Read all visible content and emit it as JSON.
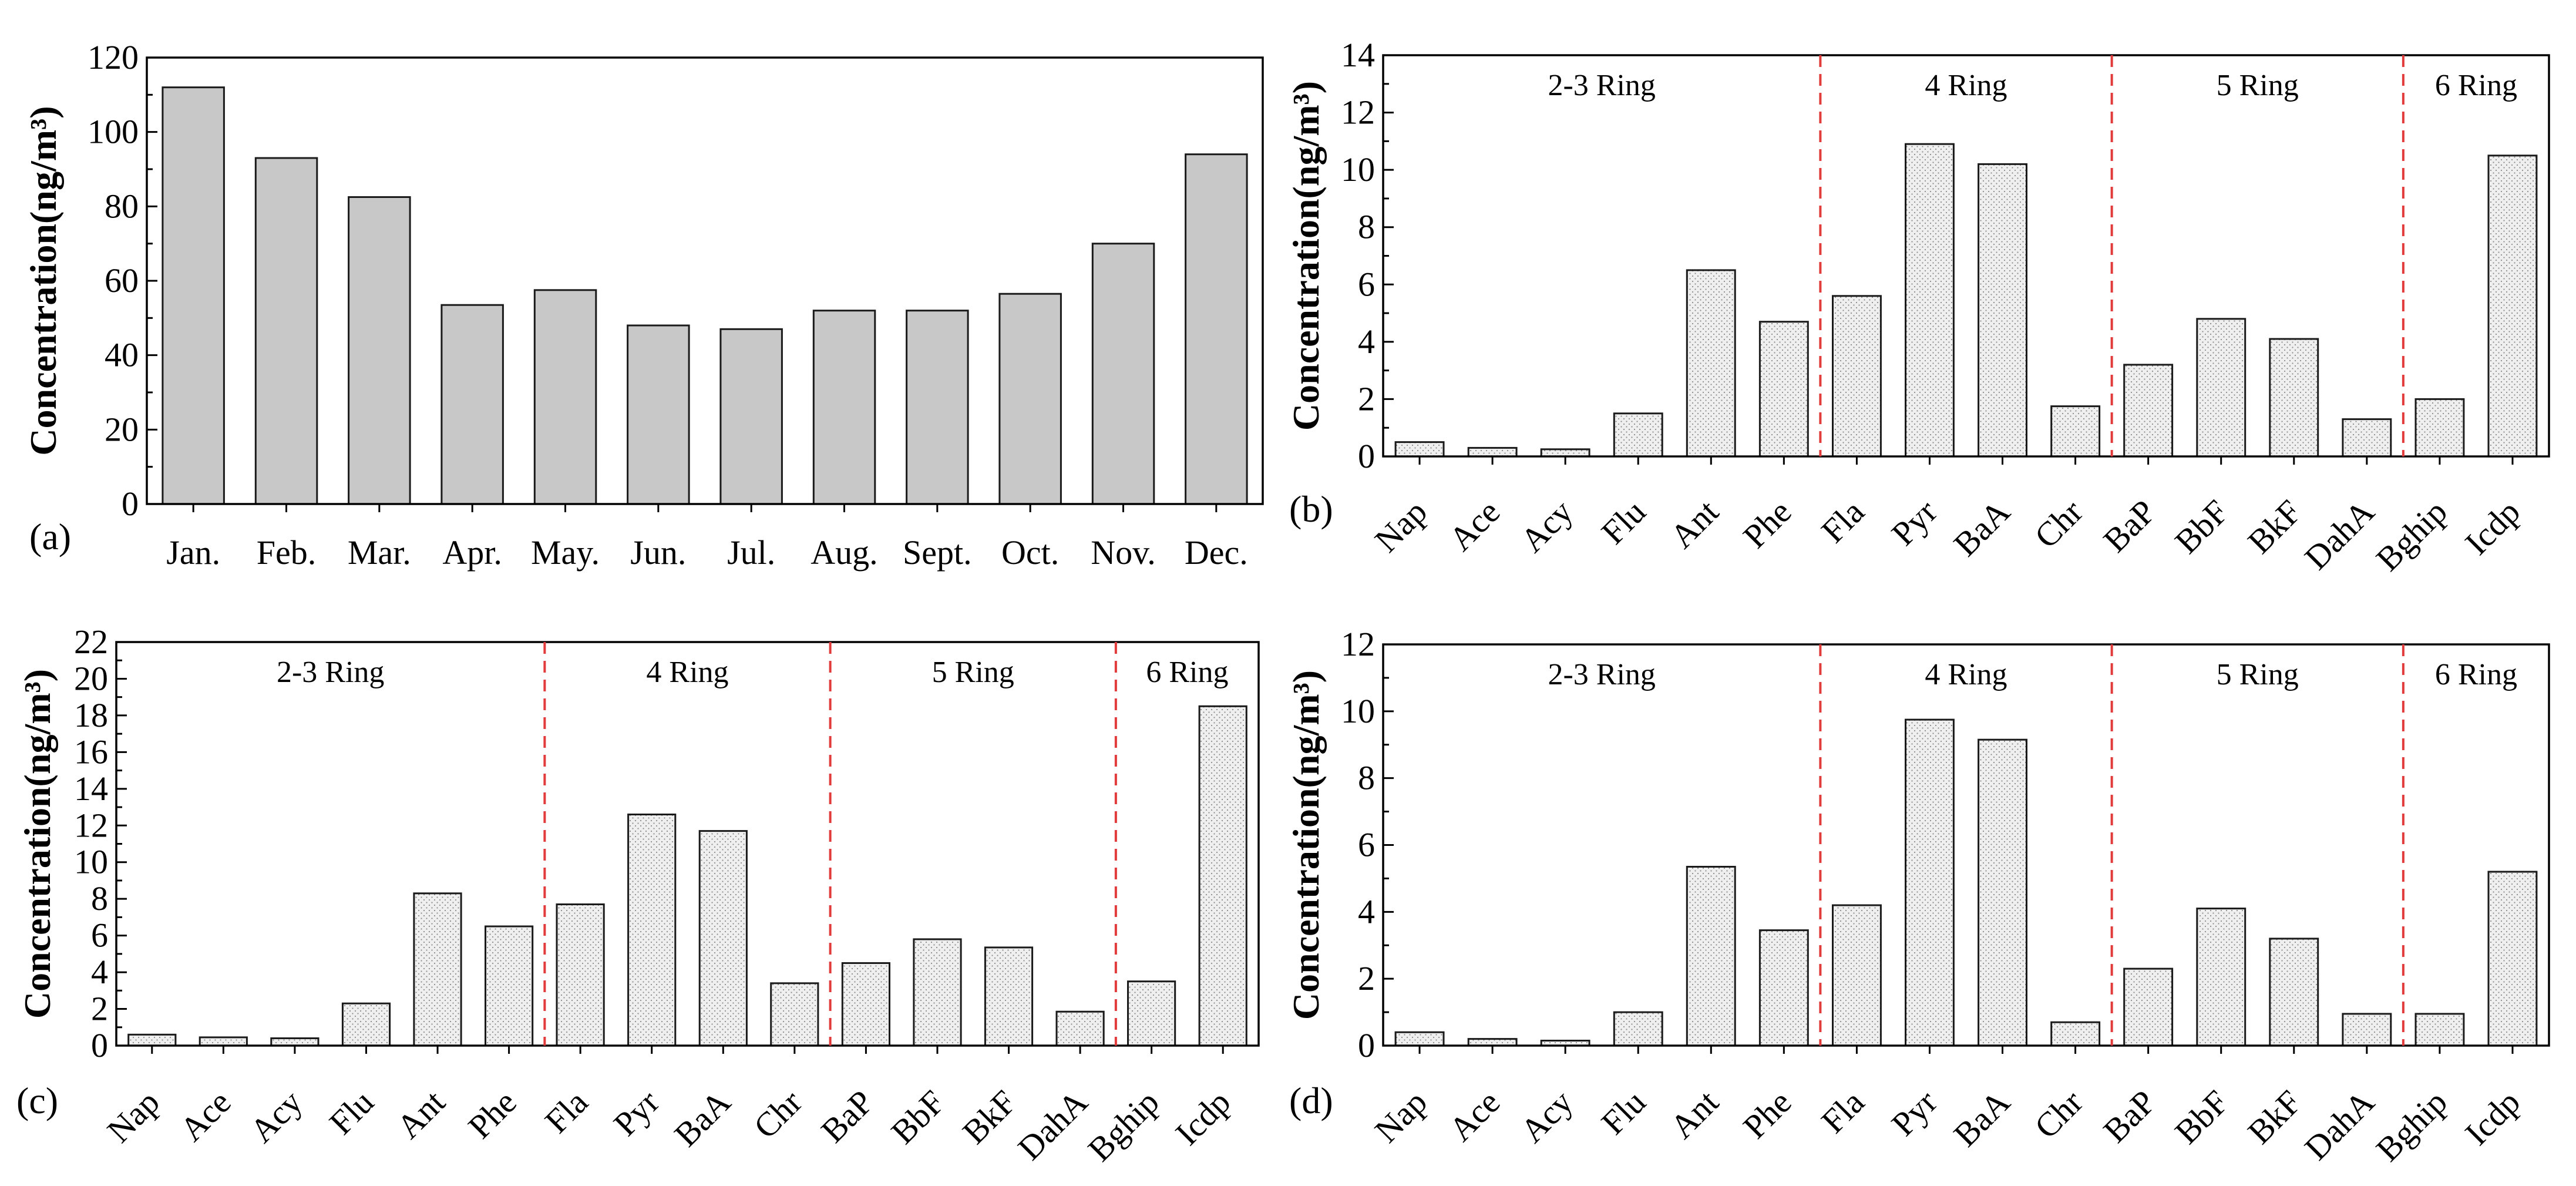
{
  "colors": {
    "monthly_bar": "#c8c8c8",
    "pah_bar": "#eeeeee",
    "divider": "#e23b3b"
  },
  "chart_data": [
    {
      "panel": "(a)",
      "type": "bar",
      "ylabel": "Concentration(ng/m³)",
      "ylim": [
        0,
        120
      ],
      "yticks": [
        0,
        20,
        40,
        60,
        80,
        100,
        120
      ],
      "categories": [
        "Jan.",
        "Feb.",
        "Mar.",
        "Apr.",
        "May.",
        "Jun.",
        "Jul.",
        "Aug.",
        "Sept.",
        "Oct.",
        "Nov.",
        "Dec."
      ],
      "values": [
        112,
        93,
        82.5,
        53.5,
        57.5,
        48,
        47,
        52,
        52,
        56.5,
        70,
        94
      ],
      "pattern": false
    },
    {
      "panel": "(b)",
      "type": "bar",
      "ylabel": "Concentration(ng/m³)",
      "ylim": [
        0,
        14
      ],
      "yticks": [
        0,
        2,
        4,
        6,
        8,
        10,
        12,
        14
      ],
      "categories": [
        "Nap",
        "Ace",
        "Acy",
        "Flu",
        "Ant",
        "Phe",
        "Fla",
        "Pyr",
        "BaA",
        "Chr",
        "BaP",
        "BbF",
        "BkF",
        "DahA",
        "Bghip",
        "Icdp"
      ],
      "values": [
        0.5,
        0.3,
        0.25,
        1.5,
        6.5,
        4.7,
        5.6,
        10.9,
        10.2,
        1.75,
        3.2,
        4.8,
        4.1,
        1.3,
        2.0,
        10.5
      ],
      "groups": [
        "2-3 Ring",
        "4 Ring",
        "5 Ring",
        "6 Ring"
      ],
      "dividers_after": [
        5,
        9,
        13
      ],
      "pattern": true
    },
    {
      "panel": "(c)",
      "type": "bar",
      "ylabel": "Concentration(ng/m³)",
      "ylim": [
        0,
        22
      ],
      "yticks": [
        0,
        2,
        4,
        6,
        8,
        10,
        12,
        14,
        16,
        18,
        20,
        22
      ],
      "categories": [
        "Nap",
        "Ace",
        "Acy",
        "Flu",
        "Ant",
        "Phe",
        "Fla",
        "Pyr",
        "BaA",
        "Chr",
        "BaP",
        "BbF",
        "BkF",
        "DahA",
        "Bghip",
        "Icdp"
      ],
      "values": [
        0.6,
        0.45,
        0.4,
        2.3,
        8.3,
        6.5,
        7.7,
        12.6,
        11.7,
        3.4,
        4.5,
        5.8,
        5.35,
        1.85,
        3.5,
        18.5
      ],
      "groups": [
        "2-3 Ring",
        "4 Ring",
        "5 Ring",
        "6 Ring"
      ],
      "dividers_after": [
        5,
        9,
        13
      ],
      "pattern": true
    },
    {
      "panel": "(d)",
      "type": "bar",
      "ylabel": "Concentration(ng/m³)",
      "ylim": [
        0,
        12
      ],
      "yticks": [
        0,
        2,
        4,
        6,
        8,
        10,
        12
      ],
      "categories": [
        "Nap",
        "Ace",
        "Acy",
        "Flu",
        "Ant",
        "Phe",
        "Fla",
        "Pyr",
        "BaA",
        "Chr",
        "BaP",
        "BbF",
        "BkF",
        "DahA",
        "Bghip",
        "Icdp"
      ],
      "values": [
        0.4,
        0.2,
        0.15,
        1.0,
        5.35,
        3.45,
        4.2,
        9.75,
        9.15,
        0.7,
        2.3,
        4.1,
        3.2,
        0.95,
        0.95,
        5.2
      ],
      "groups": [
        "2-3 Ring",
        "4 Ring",
        "5 Ring",
        "6 Ring"
      ],
      "dividers_after": [
        5,
        9,
        13
      ],
      "pattern": true
    }
  ]
}
